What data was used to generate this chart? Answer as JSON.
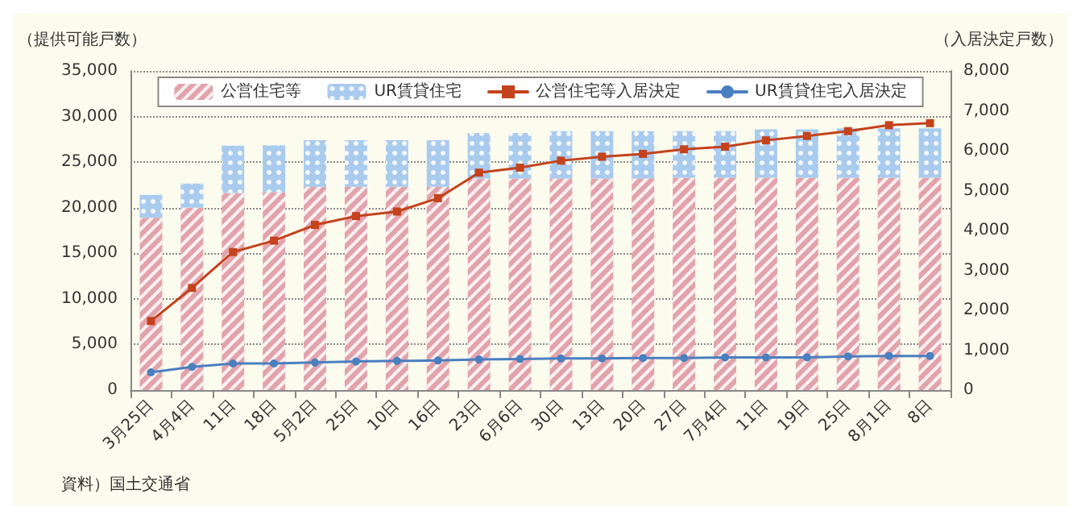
{
  "chart_data": {
    "type": "bar",
    "stacked": true,
    "ylabel": "（提供可能戸数）",
    "y2label": "（入居決定戸数）",
    "categories": [
      "3月25日",
      "4月4日",
      "11日",
      "18日",
      "5月2日",
      "25日",
      "10日",
      "16日",
      "23日",
      "6月6日",
      "30日",
      "13日",
      "20日",
      "27日",
      "7月4日",
      "11日",
      "19日",
      "25日",
      "8月1日",
      "8日"
    ],
    "series": [
      {
        "name": "公営住宅等",
        "color": "#e2a3ab",
        "values": [
          18900,
          20000,
          21600,
          21700,
          22300,
          22300,
          22300,
          22300,
          23200,
          23200,
          23200,
          23200,
          23200,
          23300,
          23300,
          23300,
          23300,
          23300,
          23300,
          23300
        ]
      },
      {
        "name": "UR賃貸住宅",
        "color": "#a9cbee",
        "values": [
          2500,
          2650,
          5200,
          5150,
          5100,
          5100,
          5100,
          5100,
          5000,
          5000,
          5200,
          5200,
          5200,
          5100,
          5100,
          5300,
          5300,
          5400,
          5400,
          5400
        ]
      },
      {
        "name": "公営住宅等入居決定",
        "type": "line",
        "axis": "y2",
        "marker": "square",
        "color": "#c4421c",
        "values": [
          1730,
          2560,
          3460,
          3745,
          4140,
          4360,
          4475,
          4810,
          5450,
          5575,
          5750,
          5850,
          5920,
          6035,
          6100,
          6260,
          6370,
          6490,
          6640,
          6690
        ]
      },
      {
        "name": "UR賃貸住宅入居決定",
        "type": "line",
        "axis": "y2",
        "marker": "circle",
        "color": "#4a7fc0",
        "values": [
          445,
          580,
          667,
          667,
          690,
          715,
          730,
          740,
          766,
          780,
          793,
          793,
          805,
          805,
          818,
          818,
          818,
          843,
          855,
          855
        ]
      }
    ],
    "ylim": [
      0,
      35000
    ],
    "yticks": [
      0,
      {
        "value": 5000,
        "label": "5,000"
      },
      {
        "value": 10000,
        "label": "10,000"
      },
      {
        "value": 15000,
        "label": "15,000"
      },
      {
        "value": 20000,
        "label": "20,000"
      },
      {
        "value": 25000,
        "label": "25,000"
      },
      {
        "value": 30000,
        "label": "30,000"
      },
      {
        "value": 35000,
        "label": "35,000"
      }
    ],
    "y2lim": [
      0,
      8000
    ],
    "y2ticks": [
      0,
      {
        "value": 1000,
        "label": "1,000"
      },
      {
        "value": 2000,
        "label": "2,000"
      },
      {
        "value": 3000,
        "label": "3,000"
      },
      {
        "value": 4000,
        "label": "4,000"
      },
      {
        "value": 5000,
        "label": "5,000"
      },
      {
        "value": 6000,
        "label": "6,000"
      },
      {
        "value": 7000,
        "label": "7,000"
      },
      {
        "value": 8000,
        "label": "8,000"
      }
    ],
    "grid": "y",
    "legend": "top",
    "line_style": "solid",
    "annotations": [
      "資料）国土交通省"
    ]
  }
}
